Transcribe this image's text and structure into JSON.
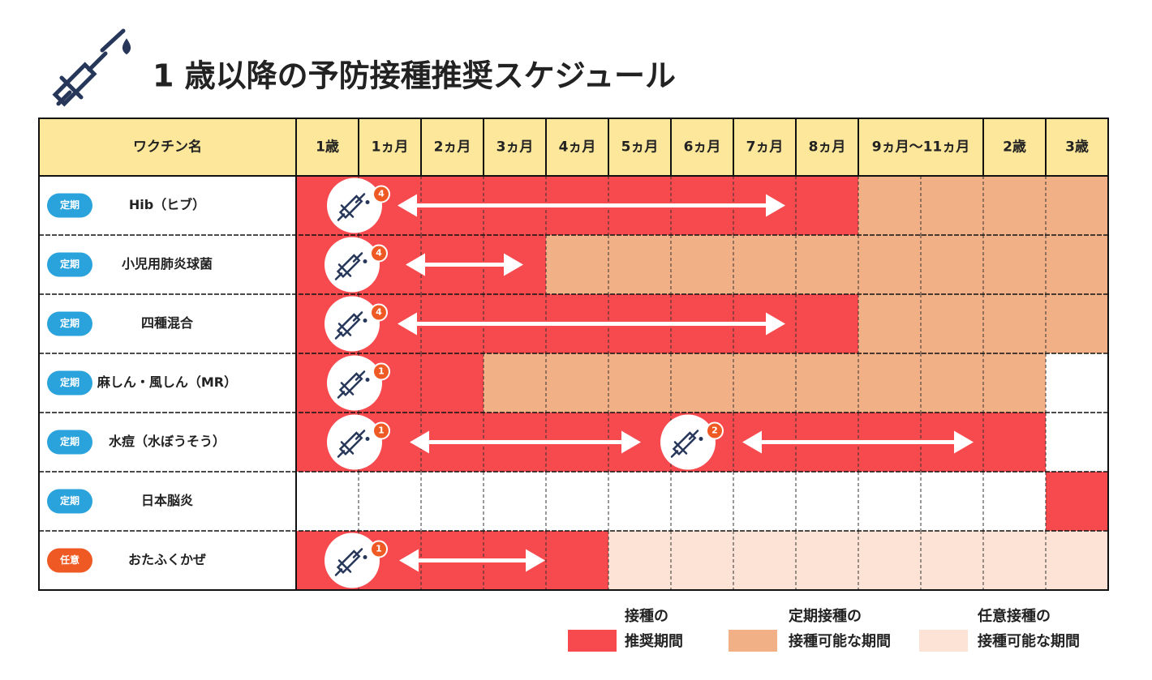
{
  "title": "1 歳以降の予防接種推奨スケジュール",
  "table": {
    "header": {
      "name": "ワクチン名",
      "fill": "#fde79a",
      "columns": [
        {
          "label": "1歳",
          "span": 1
        },
        {
          "label": "1ヵ月",
          "span": 1
        },
        {
          "label": "2ヵ月",
          "span": 1
        },
        {
          "label": "3ヵ月",
          "span": 1
        },
        {
          "label": "4ヵ月",
          "span": 1
        },
        {
          "label": "5ヵ月",
          "span": 1
        },
        {
          "label": "6ヵ月",
          "span": 1
        },
        {
          "label": "7ヵ月",
          "span": 1
        },
        {
          "label": "8ヵ月",
          "span": 1
        },
        {
          "label": "9ヵ月～11ヵ月",
          "span": 2
        },
        {
          "label": "2歳",
          "span": 1
        },
        {
          "label": "3歳",
          "span": 1
        }
      ]
    },
    "rows": [
      {
        "tag": "定期",
        "tag_color": "#2aa3dc",
        "name": "Hib（ヒブ）",
        "doses": [
          "4"
        ],
        "cells": [
          "#f74a4e",
          "#f74a4e",
          "#f74a4e",
          "#f74a4e",
          "#f74a4e",
          "#f74a4e",
          "#f74a4e",
          "#f74a4e",
          "#f74a4e",
          "#f2b086",
          "#f2b086",
          "#f2b086",
          "#f2b086"
        ]
      },
      {
        "tag": "定期",
        "tag_color": "#2aa3dc",
        "name": "小児用肺炎球菌",
        "doses": [
          "4"
        ],
        "cells": [
          "#f74a4e",
          "#f74a4e",
          "#f74a4e",
          "#f74a4e",
          "#f2b086",
          "#f2b086",
          "#f2b086",
          "#f2b086",
          "#f2b086",
          "#f2b086",
          "#f2b086",
          "#f2b086",
          "#f2b086"
        ]
      },
      {
        "tag": "定期",
        "tag_color": "#2aa3dc",
        "name": "四種混合",
        "doses": [
          "4"
        ],
        "cells": [
          "#f74a4e",
          "#f74a4e",
          "#f74a4e",
          "#f74a4e",
          "#f74a4e",
          "#f74a4e",
          "#f74a4e",
          "#f74a4e",
          "#f74a4e",
          "#f2b086",
          "#f2b086",
          "#f2b086",
          "#f2b086"
        ]
      },
      {
        "tag": "定期",
        "tag_color": "#2aa3dc",
        "name": "麻しん・風しん（MR）",
        "doses": [
          "1"
        ],
        "cells": [
          "#f74a4e",
          "#f74a4e",
          "#f74a4e",
          "#f2b086",
          "#f2b086",
          "#f2b086",
          "#f2b086",
          "#f2b086",
          "#f2b086",
          "#f2b086",
          "#f2b086",
          "#f2b086",
          "#ffffff"
        ]
      },
      {
        "tag": "定期",
        "tag_color": "#2aa3dc",
        "name": "水痘（水ぼうそう）",
        "doses": [
          "1",
          "2"
        ],
        "cells": [
          "#f74a4e",
          "#f74a4e",
          "#f74a4e",
          "#f74a4e",
          "#f74a4e",
          "#f74a4e",
          "#f74a4e",
          "#f74a4e",
          "#f74a4e",
          "#f74a4e",
          "#f74a4e",
          "#f74a4e",
          "#ffffff"
        ]
      },
      {
        "tag": "定期",
        "tag_color": "#2aa3dc",
        "name": "日本脳炎",
        "doses": [],
        "cells": [
          "#ffffff",
          "#ffffff",
          "#ffffff",
          "#ffffff",
          "#ffffff",
          "#ffffff",
          "#ffffff",
          "#ffffff",
          "#ffffff",
          "#ffffff",
          "#ffffff",
          "#ffffff",
          "#f74a4e"
        ]
      },
      {
        "tag": "任意",
        "tag_color": "#ef5a24",
        "name": "おたふくかぜ",
        "doses": [
          "1"
        ],
        "cells": [
          "#f74a4e",
          "#f74a4e",
          "#f74a4e",
          "#f74a4e",
          "#f74a4e",
          "#fce3d6",
          "#fce3d6",
          "#fce3d6",
          "#fce3d6",
          "#fce3d6",
          "#fce3d6",
          "#fce3d6",
          "#fce3d6"
        ]
      }
    ]
  },
  "legend": [
    {
      "color": "#f74a4e",
      "lines": [
        "接種の",
        "推奨期間"
      ]
    },
    {
      "color": "#f2b086",
      "lines": [
        "定期接種の",
        "接種可能な期間"
      ]
    },
    {
      "color": "#fce3d6",
      "lines": [
        "任意接種の",
        "接種可能な期間"
      ]
    }
  ]
}
